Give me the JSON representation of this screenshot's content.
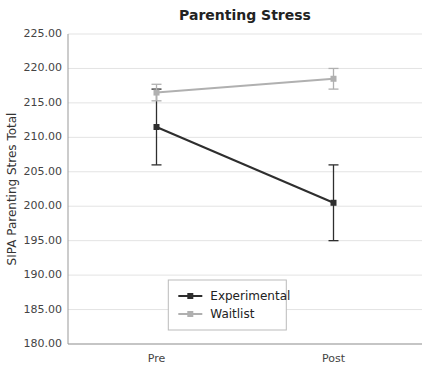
{
  "chart_data": {
    "type": "line",
    "title": "Parenting Stress",
    "y_label": "SIPA Parenting Stres Total",
    "categories": [
      "Pre",
      "Post"
    ],
    "series": [
      {
        "name": "Experimental",
        "color": "#2e2e2e",
        "values": [
          211.5,
          200.5
        ],
        "errors": [
          5.5,
          5.5
        ]
      },
      {
        "name": "Waitlist",
        "color": "#b0b0b0",
        "values": [
          216.5,
          218.5
        ],
        "errors": [
          1.2,
          1.5
        ]
      }
    ],
    "ylim": [
      180,
      225
    ],
    "yticks": [
      {
        "value": 180,
        "label": "180.00"
      },
      {
        "value": 185,
        "label": "185.00"
      },
      {
        "value": 190,
        "label": "190.00"
      },
      {
        "value": 195,
        "label": "195.00"
      },
      {
        "value": 200,
        "label": "200.00"
      },
      {
        "value": 205,
        "label": "205.00"
      },
      {
        "value": 210,
        "label": "210.00"
      },
      {
        "value": 215,
        "label": "215.00"
      },
      {
        "value": 220,
        "label": "220.00"
      },
      {
        "value": 225,
        "label": "225.00"
      }
    ],
    "grid": true,
    "legend": "bottom",
    "marker": "square"
  }
}
